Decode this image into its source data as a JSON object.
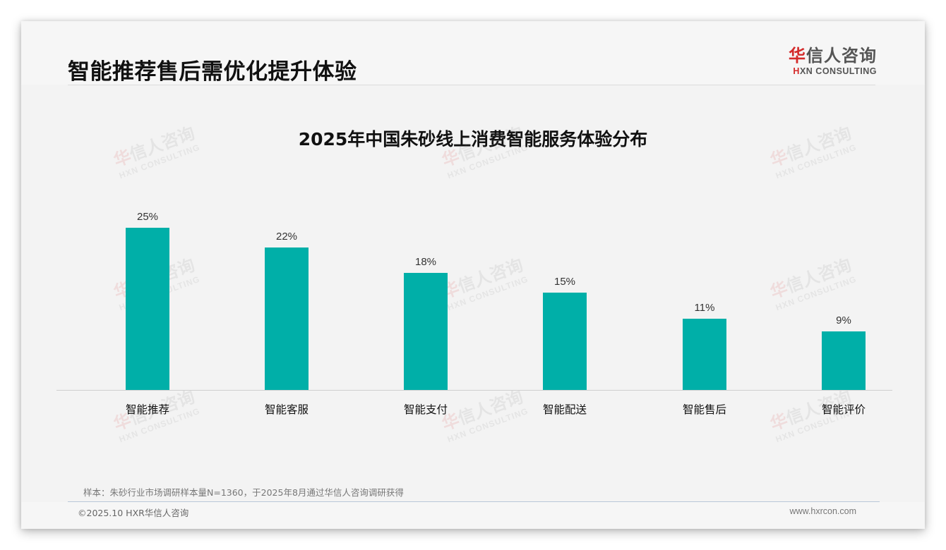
{
  "header": {
    "title": "智能推荐售后需优化提升体验",
    "logo": {
      "cn_first": "华",
      "cn_rest": "信人咨询",
      "en_first": "H",
      "en_rest": "XN CONSULTING"
    }
  },
  "watermark": {
    "cn_first": "华",
    "cn_rest": "信人咨询",
    "en": "HXN CONSULTING"
  },
  "chart_data": {
    "type": "bar",
    "title": "2025年中国朱砂线上消费智能服务体验分布",
    "categories": [
      "智能推荐",
      "智能客服",
      "智能支付",
      "智能配送",
      "智能售后",
      "智能评价"
    ],
    "values": [
      25,
      22,
      18,
      15,
      11,
      9
    ],
    "value_labels": [
      "25%",
      "22%",
      "18%",
      "15%",
      "11%",
      "9%"
    ],
    "xlabel": "",
    "ylabel": "",
    "ylim": [
      0,
      25
    ],
    "grid": false,
    "legend": "none",
    "bar_color": "#00afa8",
    "unit": "%"
  },
  "footer": {
    "note": "样本：朱砂行业市场调研样本量N=1360，于2025年8月通过华信人咨询调研获得",
    "copyright": "©2025.10 HXR华信人咨询",
    "website": "www.hxrcon.com"
  }
}
